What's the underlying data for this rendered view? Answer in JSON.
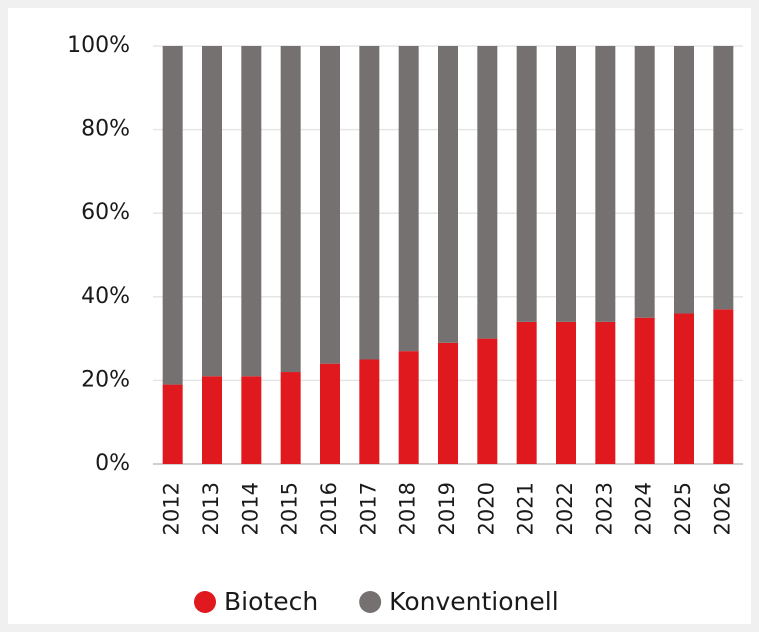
{
  "chart_data": {
    "type": "stacked_bar",
    "categories": [
      "2012",
      "2013",
      "2014",
      "2015",
      "2016",
      "2017",
      "2018",
      "2019",
      "2020",
      "2021",
      "2022",
      "2023",
      "2024",
      "2025",
      "2026"
    ],
    "series": [
      {
        "name": "Biotech",
        "color": "#e0191e",
        "values": [
          19,
          21,
          21,
          22,
          24,
          25,
          27,
          29,
          30,
          34,
          34,
          34,
          35,
          36,
          37
        ]
      },
      {
        "name": "Konventionell",
        "color": "#767171",
        "values": [
          81,
          79,
          79,
          78,
          76,
          75,
          73,
          71,
          70,
          66,
          66,
          66,
          65,
          64,
          63
        ]
      }
    ],
    "ylim": [
      0,
      100
    ],
    "yticks": [
      {
        "value": 0,
        "label": "0%"
      },
      {
        "value": 20,
        "label": "20%"
      },
      {
        "value": 40,
        "label": "40%"
      },
      {
        "value": 60,
        "label": "60%"
      },
      {
        "value": 80,
        "label": "80%"
      },
      {
        "value": 100,
        "label": "100%"
      }
    ],
    "grid": true,
    "legend": "bottom"
  }
}
